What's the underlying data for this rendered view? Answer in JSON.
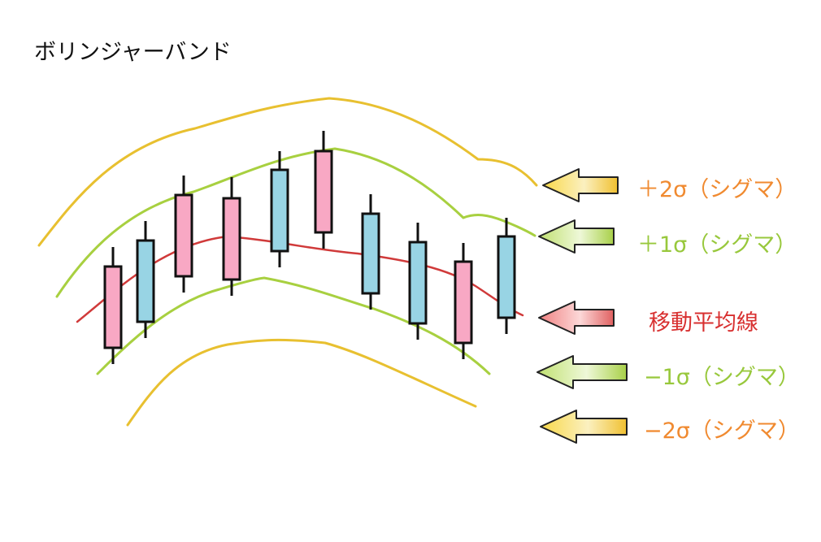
{
  "title": "ボリンジャーバンド",
  "labels": {
    "plus2": "＋2σ（シグマ）",
    "plus1": "＋1σ（シグマ）",
    "ma": "移動平均線",
    "minus1": "−1σ（シグマ）",
    "minus2": "−2σ（シグマ）"
  },
  "colors": {
    "sigma2": "#e8c030",
    "sigma1": "#a8d040",
    "ma": "#d03a3a",
    "candle_pink": "#f8a8c4",
    "candle_blue": "#98d4e4",
    "label_sigma2": "#f08a30",
    "label_sigma1": "#98c83c",
    "label_ma": "#d83030"
  },
  "candles": [
    {
      "color": "pink"
    },
    {
      "color": "blue"
    },
    {
      "color": "pink"
    },
    {
      "color": "pink"
    },
    {
      "color": "blue"
    },
    {
      "color": "pink"
    },
    {
      "color": "blue"
    },
    {
      "color": "blue"
    },
    {
      "color": "pink"
    },
    {
      "color": "blue"
    }
  ]
}
